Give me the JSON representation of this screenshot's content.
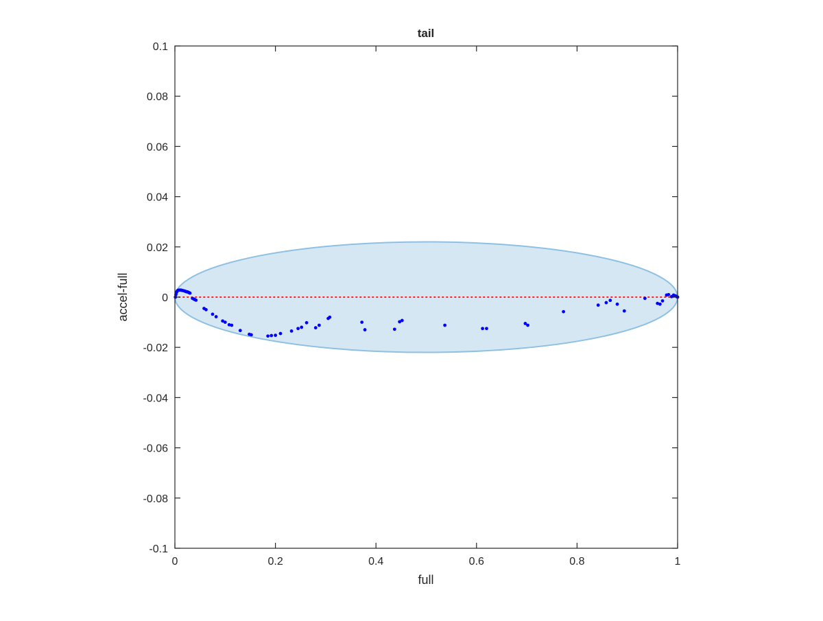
{
  "chart_data": {
    "type": "scatter",
    "title": "tail",
    "xlabel": "full",
    "ylabel": "accel-full",
    "xlim": [
      0,
      1
    ],
    "ylim": [
      -0.1,
      0.1
    ],
    "xticks": [
      0,
      0.2,
      0.4,
      0.6,
      0.8,
      1
    ],
    "xtick_labels": [
      "0",
      "0.2",
      "0.4",
      "0.6",
      "0.8",
      "1"
    ],
    "yticks": [
      -0.1,
      -0.08,
      -0.06,
      -0.04,
      -0.02,
      0,
      0.02,
      0.04,
      0.06,
      0.08,
      0.1
    ],
    "ytick_labels": [
      "-0.1",
      "-0.08",
      "-0.06",
      "-0.04",
      "-0.02",
      "0",
      "0.02",
      "0.04",
      "0.06",
      "0.08",
      "0.1"
    ],
    "grid": false,
    "colors": {
      "points": "#0000ff",
      "reference_line": "#ff0000",
      "ellipse_fill": "#d6e7f4",
      "ellipse_stroke": "#8dc0e2",
      "axes": "#262626"
    },
    "ellipse": {
      "center": [
        0.5,
        0
      ],
      "x_radius": 0.5,
      "y_radius_top": 0.022,
      "y_radius_bottom": 0.022
    },
    "reference_line": {
      "y": 0,
      "x_range": [
        0,
        1
      ],
      "style": "dotted"
    },
    "series": [
      {
        "x": [
          0.001,
          0.002,
          0.003,
          0.004,
          0.005,
          0.006,
          0.008,
          0.01,
          0.012,
          0.014,
          0.016,
          0.018,
          0.02,
          0.022,
          0.024,
          0.026,
          0.028,
          0.03,
          0.035,
          0.038,
          0.04,
          0.042,
          0.058,
          0.062,
          0.075,
          0.082,
          0.095,
          0.1,
          0.108,
          0.113,
          0.13,
          0.148,
          0.152,
          0.185,
          0.192,
          0.2,
          0.21,
          0.232,
          0.245,
          0.252,
          0.262,
          0.28,
          0.287,
          0.305,
          0.308,
          0.372,
          0.378,
          0.437,
          0.447,
          0.452,
          0.537,
          0.612,
          0.62,
          0.697,
          0.702,
          0.773,
          0.842,
          0.858,
          0.866,
          0.88,
          0.894,
          0.935,
          0.96,
          0.965,
          0.97,
          0.978,
          0.982,
          0.988,
          0.992,
          0.996,
          0.998,
          1.0
        ],
        "y": [
          0.0,
          0.001,
          0.0018,
          0.0022,
          0.0025,
          0.0027,
          0.0028,
          0.0028,
          0.0028,
          0.0027,
          0.0026,
          0.0025,
          0.0024,
          0.0022,
          0.0021,
          0.002,
          0.0018,
          0.0016,
          -0.0005,
          -0.0008,
          -0.001,
          -0.0012,
          -0.0045,
          -0.005,
          -0.0068,
          -0.0078,
          -0.0095,
          -0.01,
          -0.011,
          -0.0112,
          -0.0133,
          -0.0148,
          -0.015,
          -0.0155,
          -0.0153,
          -0.0152,
          -0.0145,
          -0.0135,
          -0.0125,
          -0.012,
          -0.0102,
          -0.0122,
          -0.0112,
          -0.0085,
          -0.008,
          -0.01,
          -0.013,
          -0.0128,
          -0.0098,
          -0.0093,
          -0.0112,
          -0.0125,
          -0.0125,
          -0.0105,
          -0.0112,
          -0.0058,
          -0.0032,
          -0.0022,
          -0.0013,
          -0.0028,
          -0.0055,
          -0.0005,
          -0.0025,
          -0.0028,
          -0.0015,
          0.0008,
          0.001,
          0.0002,
          0.0008,
          0.0005,
          0.0002,
          0.0
        ]
      }
    ]
  }
}
